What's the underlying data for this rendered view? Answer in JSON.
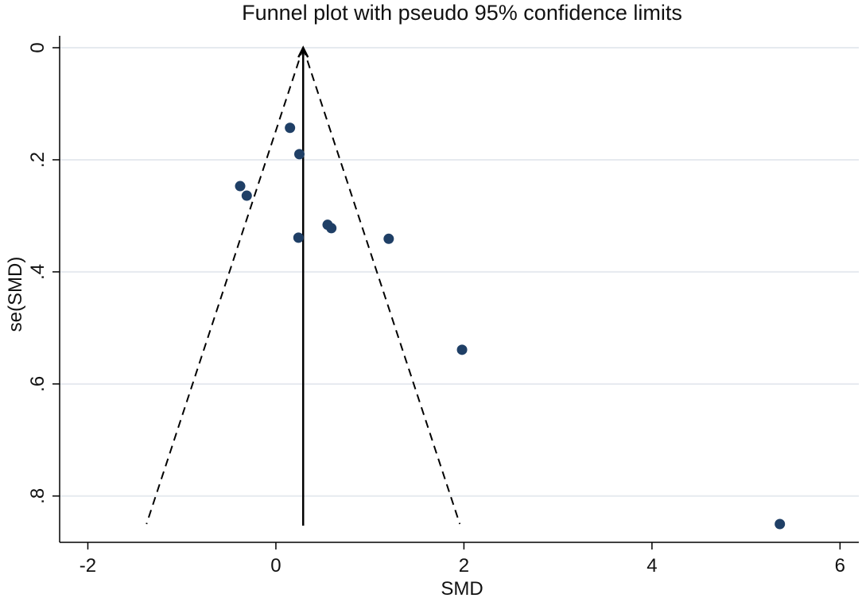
{
  "chart_data": {
    "type": "scatter",
    "title": "Funnel plot with pseudo 95% confidence limits",
    "xlabel": "SMD",
    "ylabel": "se(SMD)",
    "xlim": [
      -2.3,
      6.2
    ],
    "ylim": [
      0,
      0.85
    ],
    "y_reversed": true,
    "grid": true,
    "x_ticks": [
      -2,
      0,
      2,
      4,
      6
    ],
    "x_tick_labels": [
      "-2",
      "0",
      "2",
      "4",
      "6"
    ],
    "y_ticks": [
      0,
      0.2,
      0.4,
      0.6,
      0.8
    ],
    "y_tick_labels": [
      "0",
      ".2",
      ".4",
      ".6",
      ".8"
    ],
    "pooled_estimate": 0.29,
    "funnel_se_max": 0.85,
    "series": [
      {
        "marker_color": "#1f3f66",
        "points": [
          {
            "x": 0.15,
            "y": 0.143
          },
          {
            "x": 0.25,
            "y": 0.19
          },
          {
            "x": -0.38,
            "y": 0.247
          },
          {
            "x": -0.31,
            "y": 0.264
          },
          {
            "x": 0.55,
            "y": 0.316
          },
          {
            "x": 0.59,
            "y": 0.322
          },
          {
            "x": 0.24,
            "y": 0.339
          },
          {
            "x": 1.2,
            "y": 0.341
          },
          {
            "x": 1.98,
            "y": 0.539
          },
          {
            "x": 5.36,
            "y": 0.85
          }
        ]
      }
    ]
  }
}
